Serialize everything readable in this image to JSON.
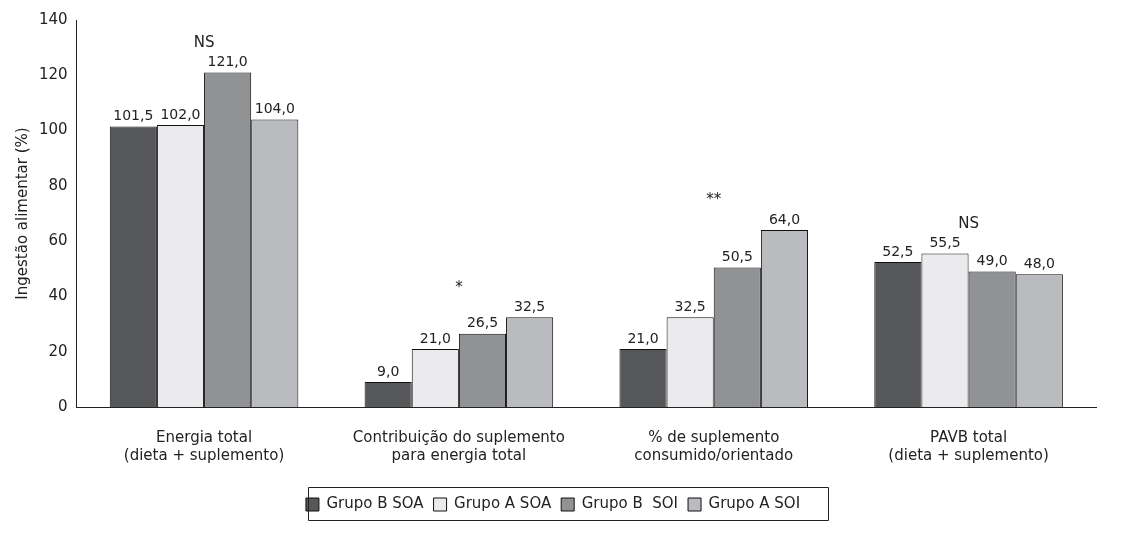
{
  "chart_data": {
    "type": "bar",
    "ylabel": "Ingestão alimentar (%)",
    "categories": [
      "Energia total\n(dieta + suplemento)",
      "Contribuição do suplemento\npara energia total",
      "% de suplemento\nconsumido/orientado",
      "PAVB total\n(dieta + suplemento)"
    ],
    "series": [
      {
        "name": "Grupo B SOA",
        "color": "#555759",
        "values": [
          101.5,
          9.0,
          21.0,
          52.5
        ],
        "value_labels": [
          "101,5",
          "9,0",
          "21,0",
          "52,5"
        ]
      },
      {
        "name": "Grupo A SOA",
        "color": "#ebebed",
        "values": [
          102.0,
          21.0,
          32.5,
          55.5
        ],
        "value_labels": [
          "102,0",
          "21,0",
          "32,5",
          "55,5"
        ]
      },
      {
        "name": "Grupo B  SOI",
        "color": "#909294",
        "values": [
          121.0,
          26.5,
          50.5,
          49.0
        ],
        "value_labels": [
          "121,0",
          "26,5",
          "50,5",
          "49,0"
        ]
      },
      {
        "name": "Grupo A SOI",
        "color": "#b9bbbe",
        "values": [
          104.0,
          32.5,
          64.0,
          48.0
        ],
        "value_labels": [
          "104,0",
          "32,5",
          "64,0",
          "48,0"
        ]
      }
    ],
    "ylim": [
      0,
      140
    ],
    "yticks": [
      0,
      20,
      40,
      60,
      80,
      100,
      120,
      140
    ],
    "grid": false,
    "legend": "bottom",
    "annotations": [
      "NS",
      "*",
      "**",
      "NS"
    ]
  }
}
